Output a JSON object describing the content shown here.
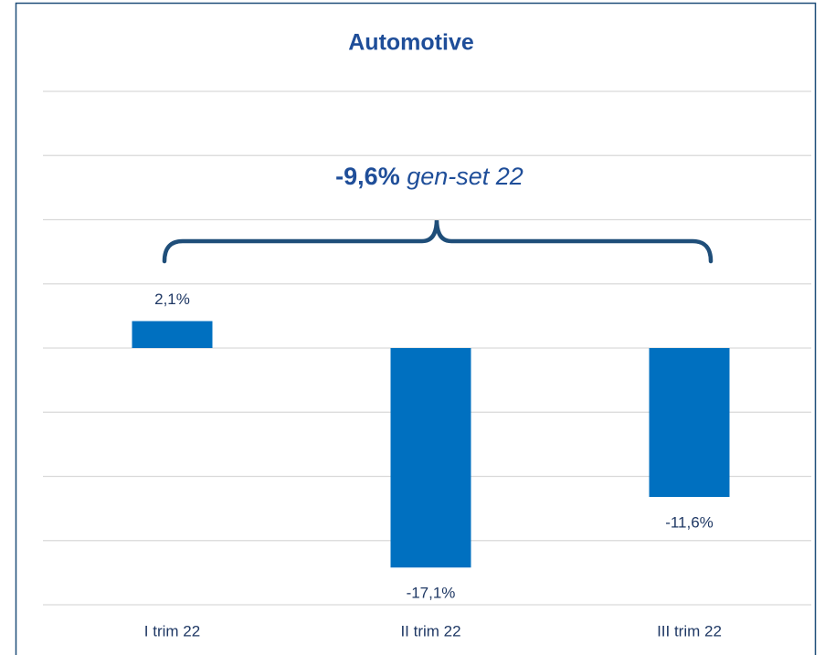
{
  "chart_data": {
    "type": "bar",
    "title": "Automotive",
    "annotation": [
      "-9,6%",
      "gen-set 22"
    ],
    "categories": [
      "I trim 22",
      "II trim 22",
      "III trim 22"
    ],
    "values": [
      2.1,
      -17.1,
      -11.6
    ],
    "value_labels": [
      "2,1%",
      "-17,1%",
      "-11,6%"
    ],
    "color": "#0070c0",
    "ylim": [
      -20,
      20
    ],
    "yticks": [
      -20,
      -15,
      -10,
      -5,
      0,
      5,
      10,
      15,
      20
    ],
    "grid": true
  }
}
